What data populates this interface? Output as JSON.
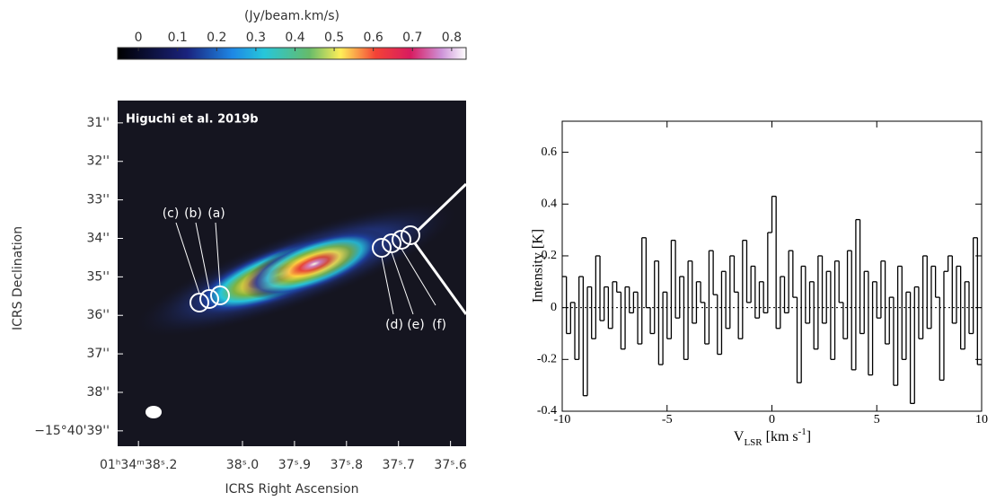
{
  "chart_data": [
    {
      "type": "image",
      "colorbar": {
        "label": "(Jy/beam.km/s)",
        "lim": [
          -0.053,
          0.837
        ],
        "ticks": [
          0,
          0.1,
          0.2,
          0.3,
          0.4,
          0.5,
          0.6,
          0.7,
          0.8
        ]
      },
      "xlabel": "ICRS Right Ascension",
      "ylabel": "ICRS Declination",
      "xlim": [
        38.24,
        37.57
      ],
      "xticks": [
        {
          "value": 38.2,
          "label": "01ʰ34ᵐ38ˢ.2"
        },
        {
          "value": 38.0,
          "label": "38ˢ.0"
        },
        {
          "value": 37.9,
          "label": "37ˢ.9"
        },
        {
          "value": 37.8,
          "label": "37ˢ.8"
        },
        {
          "value": 37.7,
          "label": "37ˢ.7"
        },
        {
          "value": 37.6,
          "label": "37ˢ.6"
        }
      ],
      "ylim": [
        30.42,
        39.4
      ],
      "yticks": [
        {
          "value": 31,
          "label": "31''"
        },
        {
          "value": 32,
          "label": "32''"
        },
        {
          "value": 33,
          "label": "33''"
        },
        {
          "value": 34,
          "label": "34''"
        },
        {
          "value": 35,
          "label": "35''"
        },
        {
          "value": 36,
          "label": "36''"
        },
        {
          "value": 37,
          "label": "37''"
        },
        {
          "value": 38,
          "label": "38''"
        },
        {
          "value": 39,
          "label": "−15°40'39''"
        }
      ],
      "credit": "Higuchi et al. 2019b",
      "markers": [
        "(c)",
        "(b)",
        "(a)",
        "(d)",
        "(e)",
        "(f)"
      ]
    },
    {
      "type": "step",
      "ylabel": "Intensity [K]",
      "xlabel": [
        "V",
        "LSR",
        " [km s",
        "-1",
        "]"
      ],
      "xlim": [
        -10,
        10
      ],
      "xticks": [
        -10,
        -5,
        0,
        5,
        10
      ],
      "ylim": [
        -0.4,
        0.72
      ],
      "yticks": [
        -0.4,
        -0.2,
        0,
        0.2,
        0.4,
        0.6
      ],
      "color": "#000000",
      "x": [
        -10.0,
        -9.8,
        -9.6,
        -9.4,
        -9.2,
        -9.0,
        -8.8,
        -8.6,
        -8.4,
        -8.2,
        -8.0,
        -7.8,
        -7.6,
        -7.4,
        -7.2,
        -7.0,
        -6.8,
        -6.6,
        -6.4,
        -6.2,
        -6.0,
        -5.8,
        -5.6,
        -5.4,
        -5.2,
        -5.0,
        -4.8,
        -4.6,
        -4.4,
        -4.2,
        -4.0,
        -3.8,
        -3.6,
        -3.4,
        -3.2,
        -3.0,
        -2.8,
        -2.6,
        -2.4,
        -2.2,
        -2.0,
        -1.8,
        -1.6,
        -1.4,
        -1.2,
        -1.0,
        -0.8,
        -0.6,
        -0.4,
        -0.2,
        0.0,
        0.2,
        0.4,
        0.6,
        0.8,
        1.0,
        1.2,
        1.4,
        1.6,
        1.8,
        2.0,
        2.2,
        2.4,
        2.6,
        2.8,
        3.0,
        3.2,
        3.4,
        3.6,
        3.8,
        4.0,
        4.2,
        4.4,
        4.6,
        4.8,
        5.0,
        5.2,
        5.4,
        5.6,
        5.8,
        6.0,
        6.2,
        6.4,
        6.6,
        6.8,
        7.0,
        7.2,
        7.4,
        7.6,
        7.8,
        8.0,
        8.2,
        8.4,
        8.6,
        8.8,
        9.0,
        9.2,
        9.4,
        9.6,
        9.8
      ],
      "values": [
        0.12,
        -0.1,
        0.02,
        -0.2,
        0.12,
        -0.34,
        0.08,
        -0.12,
        0.2,
        -0.05,
        0.08,
        -0.08,
        0.1,
        0.06,
        -0.16,
        0.08,
        -0.02,
        0.06,
        -0.14,
        0.27,
        0.0,
        -0.1,
        0.18,
        -0.22,
        0.06,
        -0.12,
        0.26,
        -0.04,
        0.12,
        -0.2,
        0.18,
        -0.06,
        0.1,
        0.02,
        -0.14,
        0.22,
        0.05,
        -0.18,
        0.14,
        -0.08,
        0.2,
        0.06,
        -0.12,
        0.26,
        0.02,
        0.16,
        -0.04,
        0.1,
        -0.02,
        0.29,
        0.43,
        -0.08,
        0.12,
        -0.02,
        0.22,
        0.04,
        -0.29,
        0.16,
        -0.06,
        0.1,
        -0.16,
        0.2,
        -0.06,
        0.14,
        -0.2,
        0.18,
        0.02,
        -0.12,
        0.22,
        -0.24,
        0.34,
        -0.1,
        0.14,
        -0.26,
        0.1,
        -0.04,
        0.18,
        -0.14,
        0.04,
        -0.3,
        0.16,
        -0.2,
        0.06,
        -0.37,
        0.08,
        -0.12,
        0.2,
        -0.08,
        0.16,
        0.04,
        -0.28,
        0.14,
        0.2,
        -0.06,
        0.16,
        -0.16,
        0.1,
        -0.1,
        0.27,
        -0.22
      ]
    }
  ]
}
